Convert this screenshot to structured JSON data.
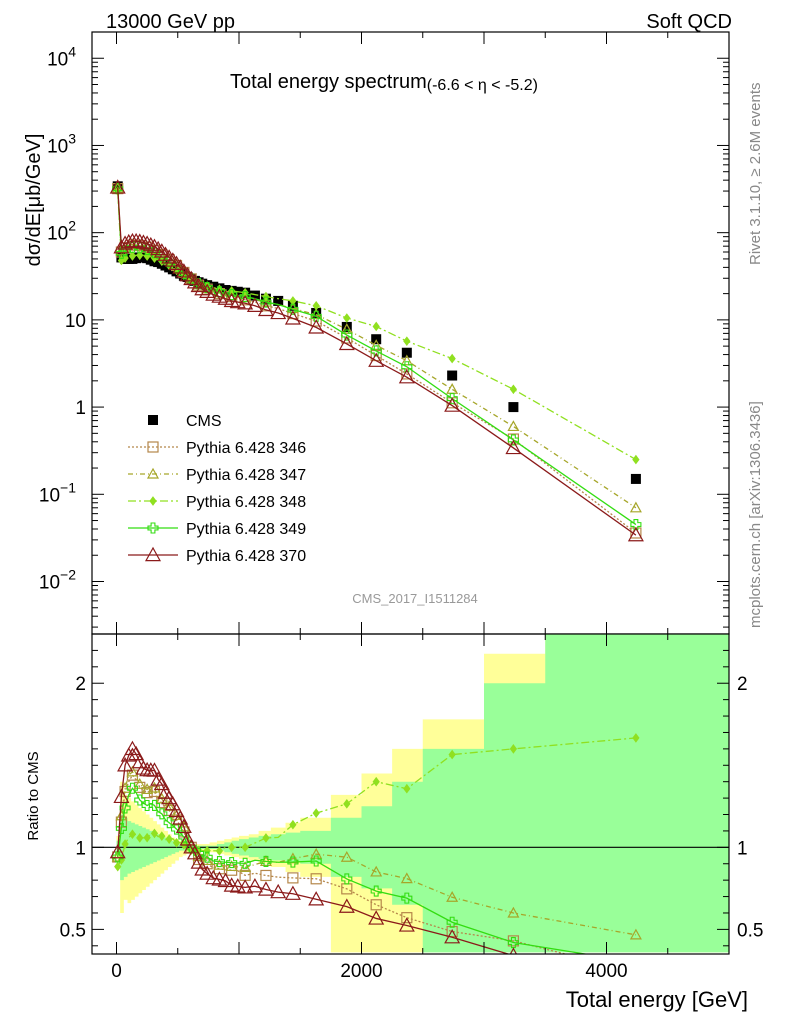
{
  "header": {
    "left": "13000 GeV pp",
    "right": "Soft QCD"
  },
  "side": {
    "top": "Rivet 3.1.10, ≥ 2.6M events",
    "bottom": "mcplots.cern.ch [arXiv:1306.3436]"
  },
  "analysis_id": "CMS_2017_I1511284",
  "colors": {
    "data": "#000000",
    "p346": "#b5874a",
    "p347": "#a6a62a",
    "p348": "#90e020",
    "p349": "#33dd11",
    "p370": "#8b1a1a",
    "band_yellow": "#ffff99",
    "band_green": "#99ff99"
  },
  "chart_data": [
    {
      "type": "scatter",
      "panel": "main",
      "title": "Total energy spectrum",
      "title_suffix": "(-6.6 < η < -5.2)",
      "ylabel": "dσ/dE[μb/GeV]",
      "yscale": "log",
      "xlim": [
        -200,
        5000
      ],
      "ylim": [
        0.0025,
        20000
      ],
      "ytick_labels": [
        {
          "v": 10000,
          "base": "10",
          "exp": "4"
        },
        {
          "v": 1000,
          "base": "10",
          "exp": "3"
        },
        {
          "v": 100,
          "base": "10",
          "exp": "2"
        },
        {
          "v": 10,
          "base": "10",
          "exp": ""
        },
        {
          "v": 1,
          "base": "1",
          "exp": ""
        },
        {
          "v": 0.1,
          "base": "10",
          "exp": "−1"
        },
        {
          "v": 0.01,
          "base": "10",
          "exp": "−2"
        }
      ],
      "legend_position": "bottom-left",
      "series": [
        {
          "key": "data",
          "name": "CMS",
          "marker": "square",
          "x": [
            10,
            40,
            70,
            100,
            130,
            160,
            190,
            220,
            250,
            280,
            310,
            340,
            370,
            400,
            430,
            460,
            490,
            520,
            550,
            580,
            610,
            640,
            670,
            700,
            740,
            790,
            840,
            890,
            940,
            990,
            1050,
            1130,
            1220,
            1320,
            1440,
            1630,
            1880,
            2120,
            2370,
            2740,
            3240,
            4240
          ],
          "y": [
            340,
            52,
            50,
            50,
            50,
            51,
            52,
            52,
            51,
            49,
            47,
            46,
            44,
            42,
            40,
            38,
            36,
            34,
            32,
            31,
            29.5,
            28,
            27,
            26,
            25,
            24,
            23,
            22,
            21.5,
            21,
            20.5,
            19,
            17.5,
            16.5,
            14.5,
            12,
            8.3,
            6,
            4.2,
            2.3,
            1,
            0.15
          ]
        },
        {
          "key": "p346",
          "name": "Pythia 6.428 346",
          "marker": "square-open",
          "dash": "2,2",
          "x": [
            10,
            40,
            70,
            100,
            130,
            160,
            190,
            220,
            250,
            280,
            310,
            340,
            370,
            400,
            430,
            460,
            490,
            520,
            550,
            580,
            610,
            640,
            670,
            700,
            740,
            790,
            840,
            890,
            940,
            990,
            1050,
            1130,
            1220,
            1320,
            1440,
            1630,
            1880,
            2120,
            2370,
            2740,
            3240,
            4240
          ],
          "y": [
            320,
            60,
            67,
            70,
            72,
            72,
            71,
            70,
            68,
            66,
            63,
            59,
            56,
            52,
            49,
            45,
            42,
            38.5,
            35,
            32,
            29.5,
            27,
            25,
            23.5,
            22.5,
            21,
            20,
            19,
            18.5,
            18,
            17,
            16,
            14.5,
            13.5,
            11.8,
            9.7,
            6.2,
            3.9,
            2.4,
            1.12,
            0.43,
            0.036
          ]
        },
        {
          "key": "p347",
          "name": "Pythia 6.428 347",
          "marker": "triangle-open",
          "dash": "5,3,1,3",
          "x": [
            10,
            40,
            70,
            100,
            130,
            160,
            190,
            220,
            250,
            280,
            310,
            340,
            370,
            400,
            430,
            460,
            490,
            520,
            550,
            580,
            610,
            640,
            670,
            700,
            740,
            790,
            840,
            890,
            940,
            990,
            1050,
            1130,
            1220,
            1320,
            1440,
            1630,
            1880,
            2120,
            2370,
            2740,
            3240,
            4240
          ],
          "y": [
            320,
            62,
            68,
            72,
            73,
            73,
            72,
            71,
            69,
            67,
            64,
            60,
            57,
            53,
            50,
            46,
            43,
            39.5,
            36,
            33,
            30,
            27.5,
            25.5,
            24,
            23,
            21.5,
            20.5,
            19.5,
            19,
            18.5,
            18,
            17,
            16,
            15,
            13.5,
            11.5,
            7.8,
            5.1,
            3.4,
            1.6,
            0.6,
            0.07
          ]
        },
        {
          "key": "p348",
          "name": "Pythia 6.428 348",
          "marker": "diamond",
          "dash": "8,3,2,3",
          "x": [
            10,
            40,
            70,
            100,
            130,
            160,
            190,
            220,
            250,
            280,
            310,
            340,
            370,
            400,
            430,
            460,
            490,
            520,
            550,
            580,
            610,
            640,
            670,
            700,
            740,
            790,
            840,
            890,
            940,
            990,
            1050,
            1130,
            1220,
            1320,
            1440,
            1630,
            1880,
            2120,
            2370,
            2740,
            3240,
            4240
          ],
          "y": [
            300,
            48,
            51,
            53,
            54,
            55,
            55,
            55,
            54,
            53,
            51,
            49,
            47,
            44,
            42,
            40,
            37,
            35,
            32.5,
            30.5,
            29,
            27.5,
            26.5,
            25.5,
            24.5,
            23.5,
            22.5,
            22,
            21.5,
            21,
            20.5,
            19.5,
            18.5,
            17.5,
            16.5,
            14.5,
            10.5,
            8.4,
            5.7,
            3.6,
            1.6,
            0.25
          ]
        },
        {
          "key": "p349",
          "name": "Pythia 6.428 349",
          "marker": "cross",
          "dash": "",
          "x": [
            10,
            40,
            70,
            100,
            130,
            160,
            190,
            220,
            250,
            280,
            310,
            340,
            370,
            400,
            430,
            460,
            490,
            520,
            550,
            580,
            610,
            640,
            670,
            700,
            740,
            790,
            840,
            890,
            940,
            990,
            1050,
            1130,
            1220,
            1320,
            1440,
            1630,
            1880,
            2120,
            2370,
            2740,
            3240,
            4240
          ],
          "y": [
            320,
            58,
            62,
            66,
            68,
            68,
            67,
            66,
            64,
            62,
            59,
            56,
            53,
            49,
            46,
            43,
            40,
            37,
            34,
            31.5,
            29.5,
            27.5,
            26,
            24.5,
            23.5,
            22,
            21,
            20,
            19.5,
            19,
            18.5,
            17.5,
            16,
            15,
            13.2,
            11,
            6.7,
            4.4,
            2.9,
            1.25,
            0.42,
            0.045
          ]
        },
        {
          "key": "p370",
          "name": "Pythia 6.428 370",
          "marker": "triangle-open",
          "dash": "",
          "x": [
            10,
            40,
            70,
            100,
            130,
            160,
            190,
            220,
            250,
            280,
            310,
            340,
            370,
            400,
            430,
            460,
            490,
            520,
            550,
            580,
            610,
            640,
            670,
            700,
            740,
            790,
            840,
            890,
            940,
            990,
            1050,
            1130,
            1220,
            1320,
            1440,
            1630,
            1880,
            2120,
            2370,
            2740,
            3240,
            4240
          ],
          "y": [
            330,
            68,
            75,
            78,
            80,
            80,
            79,
            77,
            75,
            72,
            69,
            65,
            61,
            56,
            52,
            48,
            44,
            40,
            36,
            32.5,
            29.5,
            27,
            24.5,
            22.5,
            21,
            19.5,
            18.5,
            17.5,
            16.5,
            16,
            15.5,
            14.5,
            13,
            12,
            10.4,
            8.2,
            5.3,
            3.4,
            2.2,
            1.04,
            0.34,
            0.034
          ]
        }
      ]
    },
    {
      "type": "line",
      "panel": "ratio",
      "ylabel": "Ratio to CMS",
      "xlabel": "Total energy [GeV]",
      "xlim": [
        -200,
        5000
      ],
      "ylim": [
        0.35,
        2.3
      ],
      "xticks": [
        0,
        2000,
        4000
      ],
      "yticks": [
        0.5,
        1,
        2
      ],
      "band_x": [
        0,
        30,
        60,
        90,
        120,
        150,
        180,
        210,
        240,
        270,
        300,
        330,
        360,
        390,
        420,
        450,
        480,
        510,
        540,
        570,
        600,
        630,
        660,
        690,
        720,
        760,
        820,
        880,
        940,
        1000,
        1080,
        1160,
        1260,
        1380,
        1500,
        1750,
        2000,
        2250,
        2500,
        3000,
        3500,
        5000
      ],
      "band_yellow_lo": [
        0.93,
        0.6,
        0.68,
        0.66,
        0.68,
        0.7,
        0.72,
        0.74,
        0.76,
        0.78,
        0.8,
        0.82,
        0.84,
        0.86,
        0.88,
        0.9,
        0.92,
        0.94,
        0.95,
        0.96,
        0.97,
        0.97,
        0.98,
        0.98,
        0.98,
        0.97,
        0.96,
        0.95,
        0.94,
        0.93,
        0.92,
        0.9,
        0.88,
        0.85,
        0.82,
        0.36,
        0.36,
        0.36,
        0.36,
        0.36,
        0.36
      ],
      "band_yellow_hi": [
        1.07,
        1.4,
        1.32,
        1.3,
        1.28,
        1.26,
        1.24,
        1.22,
        1.2,
        1.18,
        1.16,
        1.14,
        1.12,
        1.1,
        1.08,
        1.06,
        1.05,
        1.04,
        1.03,
        1.03,
        1.02,
        1.02,
        1.02,
        1.02,
        1.02,
        1.03,
        1.04,
        1.05,
        1.06,
        1.07,
        1.08,
        1.1,
        1.12,
        1.15,
        1.18,
        1.32,
        1.45,
        1.6,
        1.78,
        2.18,
        2.3
      ],
      "band_green_lo": [
        0.96,
        0.8,
        0.82,
        0.84,
        0.85,
        0.86,
        0.87,
        0.88,
        0.89,
        0.9,
        0.91,
        0.92,
        0.93,
        0.94,
        0.95,
        0.96,
        0.97,
        0.98,
        0.98,
        0.98,
        0.99,
        0.99,
        0.99,
        0.99,
        0.99,
        0.99,
        0.98,
        0.97,
        0.96,
        0.95,
        0.94,
        0.93,
        0.92,
        0.91,
        0.9,
        0.82,
        0.75,
        0.65,
        0.36,
        0.36,
        0.36
      ],
      "band_green_hi": [
        1.04,
        1.2,
        1.18,
        1.16,
        1.15,
        1.14,
        1.13,
        1.12,
        1.11,
        1.1,
        1.09,
        1.08,
        1.07,
        1.06,
        1.05,
        1.04,
        1.03,
        1.02,
        1.02,
        1.02,
        1.01,
        1.01,
        1.01,
        1.01,
        1.01,
        1.01,
        1.02,
        1.03,
        1.04,
        1.05,
        1.06,
        1.07,
        1.08,
        1.09,
        1.1,
        1.18,
        1.25,
        1.4,
        1.6,
        2.0,
        2.3
      ]
    }
  ]
}
